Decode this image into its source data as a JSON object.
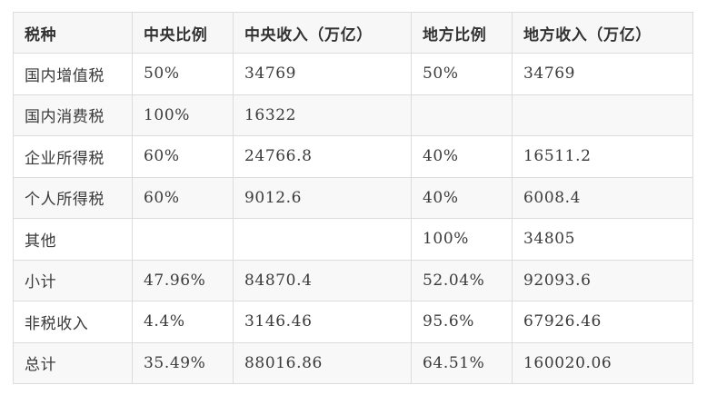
{
  "table": {
    "headers": [
      "税种",
      "中央比例",
      "中央收入（万亿）",
      "地方比例",
      "地方收入（万亿）"
    ],
    "rows": [
      [
        "国内增值税",
        "50%",
        "34769",
        "50%",
        "34769"
      ],
      [
        "国内消费税",
        "100%",
        "16322",
        "",
        ""
      ],
      [
        "企业所得税",
        "60%",
        "24766.8",
        "40%",
        "16511.2"
      ],
      [
        "个人所得税",
        "60%",
        "9012.6",
        "40%",
        "6008.4"
      ],
      [
        "其他",
        "",
        "",
        "100%",
        "34805"
      ],
      [
        "小计",
        "47.96%",
        "84870.4",
        "52.04%",
        "92093.6"
      ],
      [
        "非税收入",
        "4.4%",
        "3146.46",
        "95.6%",
        "67926.46"
      ],
      [
        "总计",
        "35.49%",
        "88016.86",
        "64.51%",
        "160020.06"
      ]
    ]
  }
}
